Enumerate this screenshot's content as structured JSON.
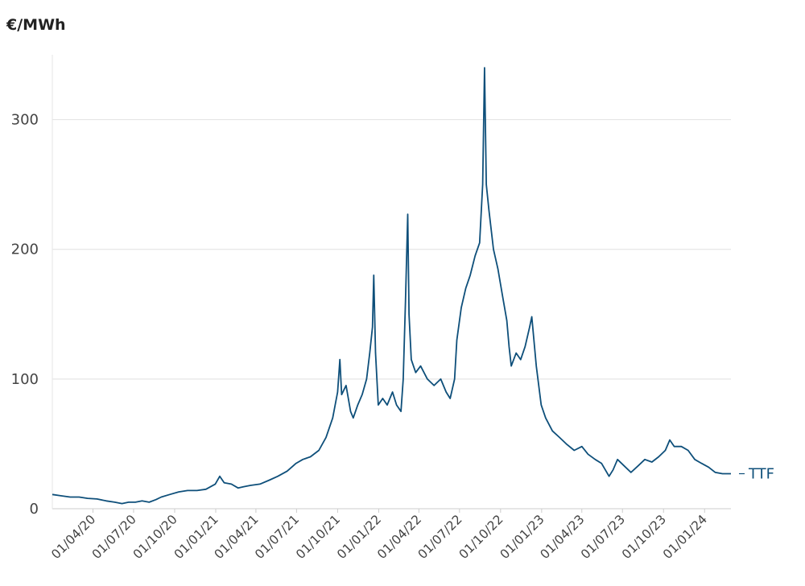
{
  "chart_data": {
    "type": "line",
    "ylabel": "€/MWh",
    "ylim": [
      0,
      350
    ],
    "y_ticks": [
      "0",
      "100",
      "200",
      "300"
    ],
    "x_ticks": [
      "01/04/20",
      "01/07/20",
      "01/10/20",
      "01/01/21",
      "01/04/21",
      "01/07/21",
      "01/10/21",
      "01/01/22",
      "01/04/22",
      "01/07/22",
      "01/10/22",
      "01/01/23",
      "01/04/23",
      "01/07/23",
      "01/10/23",
      "01/01/24"
    ],
    "x_range": [
      "2020-01-01",
      "2024-02-29"
    ],
    "grid": "horizontal",
    "line_color": "#0e4f7a",
    "series": [
      {
        "name": "TTF",
        "points": [
          [
            "2020-01-01",
            11
          ],
          [
            "2020-01-20",
            10
          ],
          [
            "2020-02-10",
            9
          ],
          [
            "2020-03-01",
            9
          ],
          [
            "2020-03-20",
            8
          ],
          [
            "2020-04-10",
            7.5
          ],
          [
            "2020-05-01",
            6
          ],
          [
            "2020-05-20",
            5
          ],
          [
            "2020-06-05",
            4
          ],
          [
            "2020-06-20",
            5
          ],
          [
            "2020-07-05",
            5
          ],
          [
            "2020-07-20",
            6
          ],
          [
            "2020-08-05",
            5
          ],
          [
            "2020-08-20",
            7
          ],
          [
            "2020-09-01",
            9
          ],
          [
            "2020-09-20",
            11
          ],
          [
            "2020-10-10",
            13
          ],
          [
            "2020-10-30",
            14
          ],
          [
            "2020-11-20",
            14
          ],
          [
            "2020-12-10",
            15
          ],
          [
            "2020-12-31",
            19
          ],
          [
            "2021-01-10",
            25
          ],
          [
            "2021-01-20",
            20
          ],
          [
            "2021-02-05",
            19
          ],
          [
            "2021-02-20",
            16
          ],
          [
            "2021-03-05",
            17
          ],
          [
            "2021-03-20",
            18
          ],
          [
            "2021-04-10",
            19
          ],
          [
            "2021-05-01",
            22
          ],
          [
            "2021-05-20",
            25
          ],
          [
            "2021-06-10",
            29
          ],
          [
            "2021-06-30",
            35
          ],
          [
            "2021-07-15",
            38
          ],
          [
            "2021-08-01",
            40
          ],
          [
            "2021-08-20",
            45
          ],
          [
            "2021-09-05",
            55
          ],
          [
            "2021-09-20",
            70
          ],
          [
            "2021-10-01",
            90
          ],
          [
            "2021-10-06",
            115
          ],
          [
            "2021-10-10",
            88
          ],
          [
            "2021-10-20",
            95
          ],
          [
            "2021-10-30",
            75
          ],
          [
            "2021-11-05",
            70
          ],
          [
            "2021-11-15",
            80
          ],
          [
            "2021-11-25",
            88
          ],
          [
            "2021-12-05",
            100
          ],
          [
            "2021-12-12",
            120
          ],
          [
            "2021-12-18",
            140
          ],
          [
            "2021-12-21",
            180
          ],
          [
            "2021-12-25",
            120
          ],
          [
            "2021-12-31",
            80
          ],
          [
            "2022-01-10",
            85
          ],
          [
            "2022-01-20",
            80
          ],
          [
            "2022-02-01",
            90
          ],
          [
            "2022-02-10",
            80
          ],
          [
            "2022-02-20",
            75
          ],
          [
            "2022-02-25",
            100
          ],
          [
            "2022-03-02",
            160
          ],
          [
            "2022-03-07",
            227
          ],
          [
            "2022-03-10",
            150
          ],
          [
            "2022-03-15",
            115
          ],
          [
            "2022-03-25",
            105
          ],
          [
            "2022-04-05",
            110
          ],
          [
            "2022-04-20",
            100
          ],
          [
            "2022-05-05",
            95
          ],
          [
            "2022-05-20",
            100
          ],
          [
            "2022-06-01",
            90
          ],
          [
            "2022-06-10",
            85
          ],
          [
            "2022-06-20",
            100
          ],
          [
            "2022-06-25",
            130
          ],
          [
            "2022-07-05",
            155
          ],
          [
            "2022-07-15",
            170
          ],
          [
            "2022-07-25",
            180
          ],
          [
            "2022-08-05",
            195
          ],
          [
            "2022-08-15",
            205
          ],
          [
            "2022-08-22",
            250
          ],
          [
            "2022-08-26",
            340
          ],
          [
            "2022-08-30",
            250
          ],
          [
            "2022-09-05",
            230
          ],
          [
            "2022-09-15",
            200
          ],
          [
            "2022-09-25",
            185
          ],
          [
            "2022-10-05",
            165
          ],
          [
            "2022-10-15",
            145
          ],
          [
            "2022-10-20",
            125
          ],
          [
            "2022-10-25",
            110
          ],
          [
            "2022-11-05",
            120
          ],
          [
            "2022-11-15",
            115
          ],
          [
            "2022-11-25",
            125
          ],
          [
            "2022-12-05",
            140
          ],
          [
            "2022-12-10",
            148
          ],
          [
            "2022-12-20",
            110
          ],
          [
            "2022-12-31",
            80
          ],
          [
            "2023-01-10",
            70
          ],
          [
            "2023-01-25",
            60
          ],
          [
            "2023-02-10",
            55
          ],
          [
            "2023-02-25",
            50
          ],
          [
            "2023-03-15",
            45
          ],
          [
            "2023-04-01",
            48
          ],
          [
            "2023-04-15",
            42
          ],
          [
            "2023-05-01",
            38
          ],
          [
            "2023-05-15",
            35
          ],
          [
            "2023-06-01",
            25
          ],
          [
            "2023-06-10",
            30
          ],
          [
            "2023-06-20",
            38
          ],
          [
            "2023-07-05",
            33
          ],
          [
            "2023-07-20",
            28
          ],
          [
            "2023-08-05",
            33
          ],
          [
            "2023-08-20",
            38
          ],
          [
            "2023-09-05",
            36
          ],
          [
            "2023-09-20",
            40
          ],
          [
            "2023-10-05",
            45
          ],
          [
            "2023-10-15",
            53
          ],
          [
            "2023-10-25",
            48
          ],
          [
            "2023-11-10",
            48
          ],
          [
            "2023-11-25",
            45
          ],
          [
            "2023-12-10",
            38
          ],
          [
            "2023-12-25",
            35
          ],
          [
            "2024-01-10",
            32
          ],
          [
            "2024-01-25",
            28
          ],
          [
            "2024-02-10",
            27
          ],
          [
            "2024-02-29",
            27
          ]
        ]
      }
    ]
  }
}
